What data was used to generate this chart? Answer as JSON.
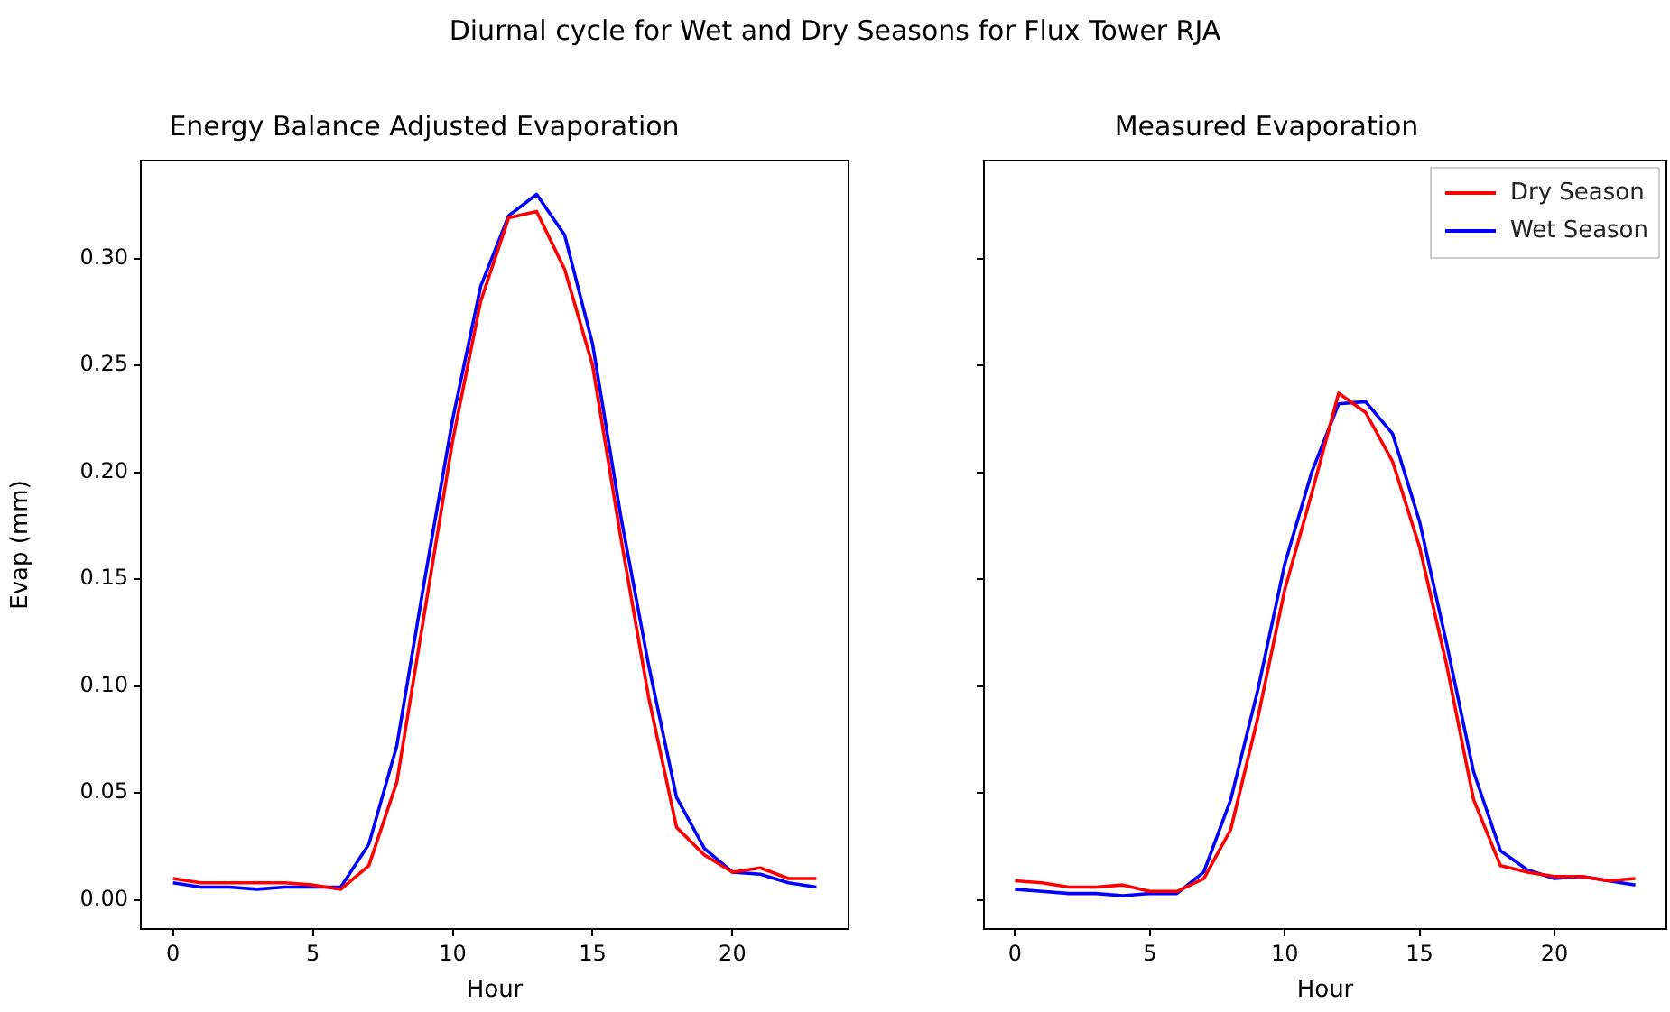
{
  "chart_data": [
    {
      "type": "line",
      "title": "Energy Balance Adjusted Evaporation",
      "xlabel": "Hour",
      "ylabel": "Evap (mm)",
      "annotations": [
        "Diurnal cycle for Wet and Dry Seasons for Flux Tower RJA"
      ],
      "x": [
        0,
        1,
        2,
        3,
        4,
        5,
        6,
        7,
        8,
        9,
        10,
        11,
        12,
        13,
        14,
        15,
        16,
        17,
        18,
        19,
        20,
        21,
        22,
        23
      ],
      "series": [
        {
          "color": "#ff0000",
          "values": [
            0.01,
            0.008,
            0.008,
            0.008,
            0.008,
            0.007,
            0.005,
            0.016,
            0.055,
            0.135,
            0.215,
            0.28,
            0.319,
            0.322,
            0.295,
            0.25,
            0.17,
            0.095,
            0.034,
            0.021,
            0.013,
            0.015,
            0.01,
            0.01
          ]
        },
        {
          "color": "#0000ff",
          "values": [
            0.008,
            0.006,
            0.006,
            0.005,
            0.006,
            0.006,
            0.006,
            0.026,
            0.072,
            0.15,
            0.225,
            0.287,
            0.32,
            0.33,
            0.311,
            0.26,
            0.18,
            0.11,
            0.048,
            0.024,
            0.013,
            0.012,
            0.008,
            0.006
          ]
        }
      ],
      "xlim": [
        -1.15,
        24.15
      ],
      "xticks": [
        0,
        5,
        10,
        15,
        20
      ],
      "ylim": [
        -0.0136,
        0.3458
      ],
      "yticks": [
        {
          "value": 0,
          "label": "0.00"
        },
        {
          "value": 0.05,
          "label": "0.05"
        },
        {
          "value": 0.1,
          "label": "0.10"
        },
        {
          "value": 0.15,
          "label": "0.15"
        },
        {
          "value": 0.2,
          "label": "0.20"
        },
        {
          "value": 0.25,
          "label": "0.25"
        },
        {
          "value": 0.3,
          "label": "0.30"
        }
      ],
      "grid": false,
      "legend": false
    },
    {
      "type": "line",
      "title": "Measured Evaporation",
      "xlabel": "Hour",
      "x": [
        0,
        1,
        2,
        3,
        4,
        5,
        6,
        7,
        8,
        9,
        10,
        11,
        12,
        13,
        14,
        15,
        16,
        17,
        18,
        19,
        20,
        21,
        22,
        23
      ],
      "series": [
        {
          "name": "Dry Season",
          "color": "#ff0000",
          "values": [
            0.009,
            0.008,
            0.006,
            0.006,
            0.007,
            0.004,
            0.004,
            0.01,
            0.033,
            0.085,
            0.145,
            0.19,
            0.237,
            0.228,
            0.205,
            0.165,
            0.11,
            0.047,
            0.016,
            0.013,
            0.011,
            0.011,
            0.009,
            0.01
          ]
        },
        {
          "name": "Wet Season",
          "color": "#0000ff",
          "values": [
            0.005,
            0.004,
            0.003,
            0.003,
            0.002,
            0.003,
            0.003,
            0.013,
            0.047,
            0.098,
            0.157,
            0.2,
            0.232,
            0.233,
            0.218,
            0.177,
            0.12,
            0.06,
            0.023,
            0.014,
            0.01,
            0.011,
            0.009,
            0.007
          ]
        }
      ],
      "xlim": [
        -1.15,
        24.15
      ],
      "xticks": [
        0,
        5,
        10,
        15,
        20
      ],
      "ylim": [
        -0.0136,
        0.3458
      ],
      "yticks": [
        {
          "value": 0,
          "label": null
        },
        {
          "value": 0.05,
          "label": null
        },
        {
          "value": 0.1,
          "label": null
        },
        {
          "value": 0.15,
          "label": null
        },
        {
          "value": 0.2,
          "label": null
        },
        {
          "value": 0.25,
          "label": null
        },
        {
          "value": 0.3,
          "label": null
        }
      ],
      "tick_labels": "x",
      "grid": false,
      "legend": "top right"
    }
  ]
}
